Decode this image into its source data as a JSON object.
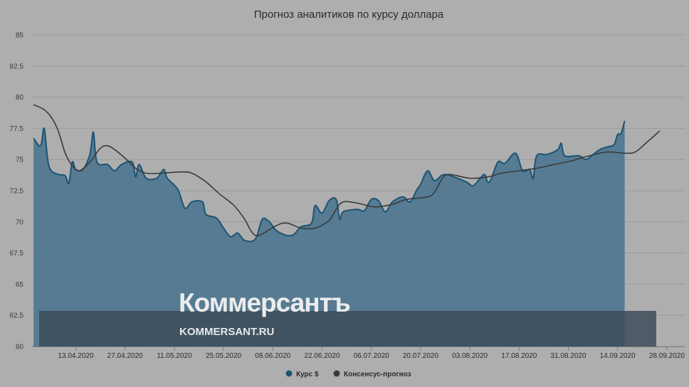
{
  "chart_data": {
    "type": "area",
    "title": "Прогноз аналитиков по курсу доллара",
    "xlabel": "",
    "ylabel": "",
    "ylim": [
      60,
      85
    ],
    "yticks": [
      "85",
      "82.5",
      "80",
      "77.5",
      "75",
      "72.5",
      "70",
      "67.5",
      "65",
      "62.5",
      "60"
    ],
    "xticks": [
      "13.04.2020",
      "27.04.2020",
      "11.05.2020",
      "25.05.2020",
      "08.06.2020",
      "22.06.2020",
      "06.07.2020",
      "20.07.2020",
      "03.08.2020",
      "17.08.2020",
      "31.08.2020",
      "14.09.2020",
      "28.09.2020"
    ],
    "grid": true,
    "legend_position": "bottom",
    "series": [
      {
        "name": "Курс $",
        "type": "area",
        "color": "#1c5474",
        "points": [
          [
            "2020-04-01",
            76.7
          ],
          [
            "2020-04-03",
            76.1
          ],
          [
            "2020-04-04",
            77.5
          ],
          [
            "2020-04-05",
            75.0
          ],
          [
            "2020-04-06",
            74.1
          ],
          [
            "2020-04-08",
            73.8
          ],
          [
            "2020-04-10",
            73.7
          ],
          [
            "2020-04-11",
            73.1
          ],
          [
            "2020-04-12",
            74.8
          ],
          [
            "2020-04-13",
            74.2
          ],
          [
            "2020-04-15",
            74.2
          ],
          [
            "2020-04-17",
            75.4
          ],
          [
            "2020-04-18",
            77.2
          ],
          [
            "2020-04-19",
            74.8
          ],
          [
            "2020-04-22",
            74.6
          ],
          [
            "2020-04-24",
            74.1
          ],
          [
            "2020-04-26",
            74.6
          ],
          [
            "2020-04-29",
            74.8
          ],
          [
            "2020-04-30",
            73.6
          ],
          [
            "2020-05-01",
            74.6
          ],
          [
            "2020-05-03",
            73.5
          ],
          [
            "2020-05-06",
            73.5
          ],
          [
            "2020-05-08",
            74.2
          ],
          [
            "2020-05-09",
            73.5
          ],
          [
            "2020-05-12",
            72.6
          ],
          [
            "2020-05-14",
            71.1
          ],
          [
            "2020-05-16",
            71.6
          ],
          [
            "2020-05-19",
            71.6
          ],
          [
            "2020-05-20",
            70.6
          ],
          [
            "2020-05-23",
            70.3
          ],
          [
            "2020-05-25",
            69.5
          ],
          [
            "2020-05-27",
            68.8
          ],
          [
            "2020-05-29",
            69.1
          ],
          [
            "2020-05-31",
            68.5
          ],
          [
            "2020-06-03",
            68.6
          ],
          [
            "2020-06-05",
            70.2
          ],
          [
            "2020-06-07",
            70.0
          ],
          [
            "2020-06-09",
            69.3
          ],
          [
            "2020-06-12",
            68.9
          ],
          [
            "2020-06-14",
            69.0
          ],
          [
            "2020-06-16",
            69.6
          ],
          [
            "2020-06-19",
            69.9
          ],
          [
            "2020-06-20",
            71.3
          ],
          [
            "2020-06-22",
            70.7
          ],
          [
            "2020-06-24",
            71.7
          ],
          [
            "2020-06-26",
            71.8
          ],
          [
            "2020-06-27",
            70.2
          ],
          [
            "2020-06-28",
            70.8
          ],
          [
            "2020-07-02",
            71.0
          ],
          [
            "2020-07-04",
            70.9
          ],
          [
            "2020-07-06",
            71.8
          ],
          [
            "2020-07-08",
            71.7
          ],
          [
            "2020-07-10",
            70.8
          ],
          [
            "2020-07-12",
            71.6
          ],
          [
            "2020-07-15",
            72.0
          ],
          [
            "2020-07-17",
            71.6
          ],
          [
            "2020-07-19",
            72.6
          ],
          [
            "2020-07-20",
            73.0
          ],
          [
            "2020-07-22",
            74.1
          ],
          [
            "2020-07-24",
            73.3
          ],
          [
            "2020-07-27",
            73.8
          ],
          [
            "2020-08-02",
            73.2
          ],
          [
            "2020-08-04",
            72.9
          ],
          [
            "2020-08-07",
            73.8
          ],
          [
            "2020-08-08",
            73.2
          ],
          [
            "2020-08-09",
            73.4
          ],
          [
            "2020-08-11",
            74.8
          ],
          [
            "2020-08-13",
            74.7
          ],
          [
            "2020-08-16",
            75.5
          ],
          [
            "2020-08-18",
            74.1
          ],
          [
            "2020-08-20",
            74.2
          ],
          [
            "2020-08-21",
            73.5
          ],
          [
            "2020-08-22",
            75.3
          ],
          [
            "2020-08-25",
            75.4
          ],
          [
            "2020-08-28",
            75.8
          ],
          [
            "2020-08-29",
            76.3
          ],
          [
            "2020-08-30",
            75.3
          ],
          [
            "2020-09-03",
            75.3
          ],
          [
            "2020-09-05",
            75.0
          ],
          [
            "2020-09-07",
            75.4
          ],
          [
            "2020-09-09",
            75.8
          ],
          [
            "2020-09-11",
            76.0
          ],
          [
            "2020-09-13",
            76.2
          ],
          [
            "2020-09-14",
            77.0
          ],
          [
            "2020-09-15",
            77.1
          ],
          [
            "2020-09-16",
            78.1
          ]
        ]
      },
      {
        "name": "Консенсус-прогноз",
        "type": "line",
        "color": "#3a3a3a",
        "points": [
          [
            "2020-04-01",
            79.4
          ],
          [
            "2020-04-04",
            79.0
          ],
          [
            "2020-04-06",
            78.4
          ],
          [
            "2020-04-08",
            77.3
          ],
          [
            "2020-04-10",
            75.5
          ],
          [
            "2020-04-12",
            74.5
          ],
          [
            "2020-04-14",
            74.1
          ],
          [
            "2020-04-17",
            74.8
          ],
          [
            "2020-04-20",
            75.9
          ],
          [
            "2020-04-22",
            76.1
          ],
          [
            "2020-04-24",
            75.8
          ],
          [
            "2020-04-27",
            75.1
          ],
          [
            "2020-04-30",
            74.3
          ],
          [
            "2020-05-03",
            73.9
          ],
          [
            "2020-05-07",
            73.9
          ],
          [
            "2020-05-13",
            74.0
          ],
          [
            "2020-05-16",
            73.9
          ],
          [
            "2020-05-20",
            73.2
          ],
          [
            "2020-05-24",
            72.2
          ],
          [
            "2020-05-28",
            71.3
          ],
          [
            "2020-05-31",
            70.2
          ],
          [
            "2020-06-02",
            69.2
          ],
          [
            "2020-06-04",
            68.9
          ],
          [
            "2020-06-09",
            69.7
          ],
          [
            "2020-06-12",
            69.9
          ],
          [
            "2020-06-16",
            69.5
          ],
          [
            "2020-06-20",
            69.5
          ],
          [
            "2020-06-24",
            70.1
          ],
          [
            "2020-06-26",
            71.0
          ],
          [
            "2020-06-28",
            71.6
          ],
          [
            "2020-07-02",
            71.5
          ],
          [
            "2020-07-07",
            71.2
          ],
          [
            "2020-07-12",
            71.4
          ],
          [
            "2020-07-16",
            71.8
          ],
          [
            "2020-07-22",
            72.0
          ],
          [
            "2020-07-24",
            72.4
          ],
          [
            "2020-07-26",
            73.4
          ],
          [
            "2020-07-28",
            73.8
          ],
          [
            "2020-08-03",
            73.5
          ],
          [
            "2020-08-08",
            73.6
          ],
          [
            "2020-08-12",
            73.9
          ],
          [
            "2020-08-17",
            74.1
          ],
          [
            "2020-08-22",
            74.3
          ],
          [
            "2020-08-27",
            74.6
          ],
          [
            "2020-09-01",
            74.9
          ],
          [
            "2020-09-06",
            75.3
          ],
          [
            "2020-09-11",
            75.6
          ],
          [
            "2020-09-16",
            75.5
          ],
          [
            "2020-09-19",
            75.6
          ],
          [
            "2020-09-22",
            76.3
          ],
          [
            "2020-09-26",
            77.3
          ]
        ]
      }
    ]
  },
  "watermark": {
    "brand": "Коммерсантъ",
    "url": "KOMMERSANT.RU"
  },
  "colors": {
    "background": "#aeaeae",
    "area_fill": "#567b92",
    "area_line": "#1c5474",
    "consensus_line": "#3a3a3a",
    "watermark_band": "#3b4b58"
  }
}
